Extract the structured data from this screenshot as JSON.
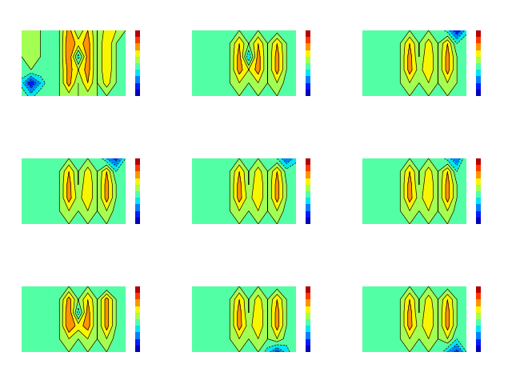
{
  "chart_data": [
    {
      "type": "contour",
      "tick_labels": false,
      "colorbar_range": [
        -1,
        1
      ],
      "cells": [
        [
          0,
          0.1,
          0,
          0,
          0,
          0.5,
          0,
          0.4,
          0,
          0.3,
          0.2,
          0
        ],
        [
          0.1,
          0.2,
          0,
          0,
          0,
          0.6,
          0.3,
          0.5,
          0,
          0.4,
          0,
          0
        ],
        [
          0,
          0.2,
          0,
          0,
          0,
          0.6,
          -0.3,
          0.5,
          0,
          0.4,
          0,
          0
        ],
        [
          0,
          0,
          0,
          0,
          0,
          0.5,
          0.2,
          0.5,
          0,
          0.4,
          0,
          0
        ],
        [
          -0.3,
          -0.8,
          -0.4,
          0,
          0,
          0.5,
          0,
          0.4,
          0,
          0.3,
          0,
          0
        ],
        [
          0,
          -0.3,
          0,
          0,
          0,
          0.1,
          0,
          0.1,
          0,
          0,
          0,
          0
        ]
      ]
    },
    {
      "type": "contour",
      "tick_labels": false,
      "colorbar_range": [
        -1,
        1
      ],
      "cells": [
        [
          0,
          0,
          0,
          -0.1,
          0,
          0,
          0,
          0,
          -0.2,
          -0.1,
          0,
          0
        ],
        [
          0,
          0,
          0,
          0,
          0,
          0.4,
          0,
          0.4,
          0,
          0.4,
          0,
          0
        ],
        [
          0,
          0,
          0,
          0,
          0,
          0.5,
          -0.4,
          0.5,
          0,
          0.5,
          0,
          0
        ],
        [
          0,
          0,
          0,
          0,
          0,
          0.5,
          0.2,
          0.5,
          0,
          0.5,
          0,
          0
        ],
        [
          0,
          -0.1,
          0,
          0,
          0,
          0.2,
          0,
          0.2,
          0,
          0.2,
          -0.1,
          0
        ],
        [
          0,
          0,
          0,
          0,
          0,
          0,
          0,
          0,
          0,
          0,
          0,
          0
        ]
      ]
    },
    {
      "type": "contour",
      "tick_labels": false,
      "colorbar_range": [
        -1,
        1
      ],
      "cells": [
        [
          0,
          0,
          0,
          0,
          0,
          0,
          0,
          0,
          0,
          -0.3,
          -0.8,
          -0.3
        ],
        [
          0,
          0,
          0,
          0,
          0,
          0.4,
          0,
          0.3,
          0,
          0.4,
          -0.2,
          0
        ],
        [
          0,
          0,
          0,
          0,
          0,
          0.5,
          0,
          0.4,
          0,
          0.5,
          0,
          0
        ],
        [
          0,
          0,
          0,
          0,
          0,
          0.5,
          0.1,
          0.4,
          0,
          0.5,
          0,
          0
        ],
        [
          0,
          -0.1,
          0,
          0,
          0,
          0.2,
          0,
          0.2,
          0,
          0.2,
          0,
          -0.1
        ],
        [
          0,
          0,
          0,
          0,
          0,
          0,
          0,
          0,
          0,
          0,
          0,
          0
        ]
      ]
    },
    {
      "type": "contour",
      "tick_labels": false,
      "colorbar_range": [
        -1,
        1
      ],
      "cells": [
        [
          0,
          0,
          0,
          0,
          0,
          0,
          0,
          0,
          0,
          -0.4,
          -0.7,
          -0.2
        ],
        [
          0,
          0,
          0,
          0,
          0,
          0.4,
          0,
          0.3,
          0,
          0.4,
          -0.2,
          0
        ],
        [
          0,
          -0.1,
          0,
          0,
          0,
          0.5,
          0,
          0.4,
          0,
          0.5,
          0,
          0
        ],
        [
          0,
          0,
          0,
          0,
          0,
          0.5,
          0.1,
          0.4,
          0,
          0.5,
          0,
          0
        ],
        [
          0,
          -0.1,
          0,
          0,
          0,
          0.2,
          0,
          0.2,
          0,
          0.2,
          -0.1,
          -0.1
        ],
        [
          0,
          0,
          0,
          0,
          0,
          0,
          0,
          0,
          0,
          0,
          0,
          0
        ]
      ]
    },
    {
      "type": "contour",
      "tick_labels": false,
      "colorbar_range": [
        -1,
        1
      ],
      "cells": [
        [
          0,
          0,
          0,
          0,
          0,
          0,
          0,
          0,
          0,
          -0.2,
          -0.6,
          -0.3
        ],
        [
          0,
          0,
          0,
          0,
          0,
          0.4,
          0,
          0.3,
          0,
          0.4,
          -0.1,
          0
        ],
        [
          0,
          0,
          0,
          0,
          0,
          0.5,
          0,
          0.4,
          0,
          0.5,
          0,
          0
        ],
        [
          0,
          0,
          0,
          0,
          0,
          0.5,
          0.1,
          0.4,
          0,
          0.5,
          0,
          0
        ],
        [
          0,
          -0.1,
          0,
          0,
          0,
          0.2,
          0,
          0.2,
          0,
          0.2,
          -0.1,
          0
        ],
        [
          0,
          0,
          0,
          0,
          0,
          0,
          0,
          0,
          0,
          0,
          0,
          0
        ]
      ]
    },
    {
      "type": "contour",
      "tick_labels": false,
      "colorbar_range": [
        -1,
        1
      ],
      "cells": [
        [
          0,
          0,
          0,
          0,
          0,
          0,
          0,
          0,
          0,
          -0.3,
          -0.6,
          0
        ],
        [
          0,
          0,
          0,
          0,
          0,
          0.4,
          0,
          0.3,
          0,
          0.4,
          -0.2,
          0
        ],
        [
          0,
          0,
          0,
          0,
          0,
          0.5,
          0,
          0.4,
          0,
          0.5,
          0,
          0
        ],
        [
          0,
          0,
          0,
          0,
          0,
          0.5,
          0.1,
          0.4,
          0,
          0.5,
          0,
          0
        ],
        [
          0,
          -0.1,
          0,
          0,
          0,
          0.2,
          0,
          0.2,
          0,
          0.2,
          -0.1,
          -0.1
        ],
        [
          0,
          0,
          0,
          0,
          0,
          0,
          0,
          0,
          0,
          0,
          0,
          0
        ]
      ]
    },
    {
      "type": "contour",
      "tick_labels": false,
      "colorbar_range": [
        -1,
        1
      ],
      "cells": [
        [
          0,
          0,
          0,
          -0.1,
          0,
          0,
          0,
          0,
          0,
          -0.2,
          -0.1,
          0
        ],
        [
          0,
          0,
          0,
          0,
          0,
          0.5,
          0,
          0.4,
          0,
          0.5,
          0,
          0
        ],
        [
          0,
          0,
          0,
          0,
          0,
          0.6,
          -0.3,
          0.5,
          0,
          0.5,
          0,
          0
        ],
        [
          0,
          0,
          0,
          0,
          0,
          0.6,
          0.3,
          0.5,
          0,
          0.5,
          0,
          0
        ],
        [
          0,
          -0.1,
          0,
          0,
          0,
          0.2,
          0,
          0.2,
          0,
          0.2,
          -0.1,
          -0.1
        ],
        [
          0,
          0,
          0,
          0,
          0,
          0,
          0,
          0,
          0,
          0,
          0,
          0
        ]
      ]
    },
    {
      "type": "contour",
      "tick_labels": false,
      "colorbar_range": [
        -1,
        1
      ],
      "cells": [
        [
          0,
          0,
          0,
          -0.1,
          0,
          0,
          0,
          0,
          0,
          -0.1,
          0,
          0
        ],
        [
          0,
          0,
          0,
          0,
          0,
          0.4,
          0,
          0.3,
          0,
          0.4,
          0,
          0
        ],
        [
          0,
          0,
          0,
          0,
          0,
          0.5,
          0,
          0.4,
          0,
          0.5,
          0,
          0
        ],
        [
          0,
          0,
          0,
          0,
          0,
          0.5,
          0.1,
          0.4,
          0,
          0.5,
          0,
          0
        ],
        [
          0,
          -0.1,
          0,
          0,
          0,
          0.2,
          0,
          0.2,
          0,
          0.2,
          -0.1,
          0
        ],
        [
          0,
          0,
          0,
          0,
          0,
          0,
          0,
          0,
          -0.3,
          -0.7,
          -0.3,
          0
        ]
      ]
    },
    {
      "type": "contour",
      "tick_labels": false,
      "colorbar_range": [
        -1,
        1
      ],
      "cells": [
        [
          0,
          0,
          0,
          0,
          0,
          0,
          0,
          0,
          0,
          -0.1,
          0,
          0
        ],
        [
          0,
          0,
          0,
          0,
          0,
          0.4,
          0,
          0.3,
          0,
          0.4,
          0,
          0
        ],
        [
          0,
          0,
          0,
          0,
          0,
          0.5,
          0,
          0.4,
          0,
          0.5,
          0,
          0
        ],
        [
          0,
          0,
          0,
          0,
          0,
          0.5,
          0.1,
          0.4,
          0,
          0.5,
          0,
          0
        ],
        [
          0,
          -0.1,
          0,
          0,
          0,
          0.2,
          0,
          0.2,
          0,
          0.2,
          -0.2,
          0
        ],
        [
          0,
          0,
          0,
          0,
          0,
          0,
          0,
          0,
          0,
          -0.4,
          -0.7,
          -0.2
        ]
      ]
    }
  ]
}
